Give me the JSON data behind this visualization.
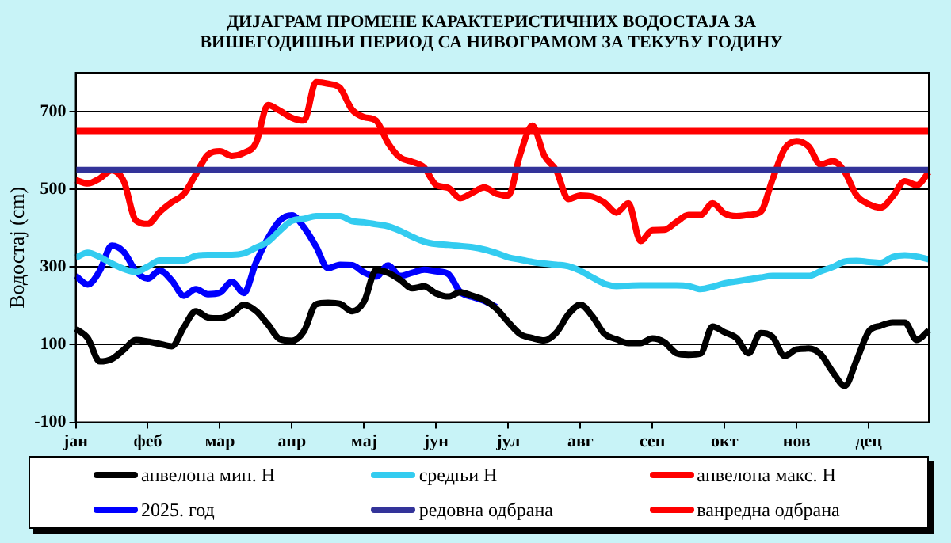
{
  "chart_data": {
    "type": "line",
    "title": "ДИЈАГРАМ ПРОМЕНЕ КАРАКТЕРИСТИЧНИХ ВОДОСТАЈА ЗА ВИШЕГОДИШЊИ ПЕРИОД СА НИВОГРАМОМ ЗА ТЕКУЋУ ГОДИНУ",
    "ylabel": "Водостај (cm)",
    "categories": [
      "јан",
      null,
      null,
      null,
      null,
      null,
      "феб",
      null,
      null,
      null,
      null,
      null,
      "мар",
      null,
      null,
      null,
      null,
      null,
      "апр",
      null,
      null,
      null,
      null,
      null,
      "мај",
      null,
      null,
      null,
      null,
      null,
      "јун",
      null,
      null,
      null,
      null,
      null,
      "јул",
      null,
      null,
      null,
      null,
      null,
      "авг",
      null,
      null,
      null,
      null,
      null,
      "сеп",
      null,
      null,
      null,
      null,
      null,
      "окт",
      null,
      null,
      null,
      null,
      null,
      "нов",
      null,
      null,
      null,
      null,
      null,
      "дец",
      null,
      null,
      null,
      null,
      null
    ],
    "ylim": [
      -100,
      800
    ],
    "yticks": [
      -100,
      100,
      300,
      500,
      700
    ],
    "grid": "y",
    "legend": "bottom",
    "marker": "none",
    "line_style": "solid",
    "series": [
      {
        "name": "анвелопа мин. Н",
        "color": "#000000",
        "values": [
          141,
          117,
          57,
          63,
          87,
          112,
          108,
          102,
          96,
          145,
          186,
          170,
          168,
          180,
          203,
          187,
          152,
          114,
          110,
          135,
          204,
          208,
          205,
          186,
          211,
          292,
          285,
          267,
          245,
          250,
          232,
          224,
          235,
          226,
          215,
          193,
          158,
          127,
          117,
          111,
          131,
          178,
          203,
          173,
          128,
          114,
          104,
          104,
          116,
          106,
          78,
          74,
          77,
          147,
          132,
          117,
          78,
          130,
          120,
          71,
          88,
          90,
          75,
          30,
          -6,
          61,
          134,
          149,
          157,
          157,
          112,
          137
        ]
      },
      {
        "name": "средњи Н",
        "color": "#33ccf0",
        "values": [
          324,
          337,
          326,
          309,
          295,
          287,
          301,
          317,
          317,
          317,
          329,
          331,
          331,
          331,
          335,
          350,
          365,
          394,
          419,
          424,
          431,
          431,
          431,
          418,
          415,
          410,
          405,
          393,
          378,
          365,
          359,
          357,
          354,
          351,
          345,
          336,
          325,
          319,
          313,
          309,
          306,
          302,
          290,
          273,
          257,
          251,
          252,
          253,
          253,
          253,
          253,
          251,
          243,
          249,
          258,
          263,
          268,
          273,
          277,
          277,
          277,
          277,
          289,
          300,
          314,
          316,
          313,
          311,
          326,
          330,
          327,
          320
        ]
      },
      {
        "name": "анвелопа макс. Н",
        "color": "#ff0000",
        "values": [
          524,
          515,
          528,
          549,
          521,
          420,
          411,
          442,
          467,
          488,
          539,
          589,
          598,
          586,
          594,
          619,
          717,
          702,
          684,
          677,
          776,
          772,
          761,
          705,
          686,
          677,
          619,
          582,
          571,
          556,
          511,
          504,
          477,
          491,
          505,
          489,
          484,
          591,
          664,
          587,
          548,
          475,
          484,
          481,
          466,
          440,
          464,
          367,
          395,
          396,
          416,
          434,
          434,
          464,
          438,
          431,
          434,
          442,
          526,
          604,
          624,
          610,
          564,
          573,
          545,
          484,
          462,
          453,
          482,
          521,
          511,
          544
        ]
      },
      {
        "name": "2025. год",
        "color": "#0000ff",
        "values": [
          277,
          255,
          290,
          355,
          339,
          290,
          270,
          291,
          265,
          226,
          243,
          230,
          234,
          262,
          233,
          311,
          374,
          420,
          433,
          402,
          353,
          297,
          306,
          305,
          286,
          275,
          304,
          277,
          285,
          293,
          289,
          282,
          236,
          223,
          213,
          197,
          null,
          null,
          null,
          null,
          null,
          null,
          null,
          null,
          null,
          null,
          null,
          null,
          null,
          null,
          null,
          null,
          null,
          null,
          null,
          null,
          null,
          null,
          null,
          null,
          null,
          null,
          null,
          null,
          null,
          null,
          null,
          null,
          null,
          null,
          null,
          null
        ]
      }
    ],
    "ref_lines": [
      {
        "axis": "y",
        "value": 550,
        "label": "редовна одбрана",
        "color": "#333399"
      },
      {
        "axis": "y",
        "value": 650,
        "label": "ванредна одбрана",
        "color": "#ff0000"
      }
    ]
  }
}
